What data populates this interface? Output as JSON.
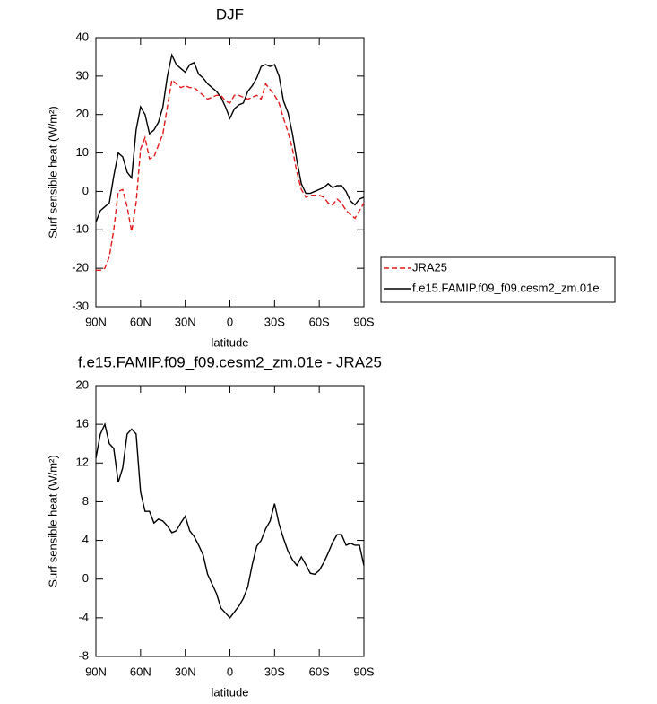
{
  "chart_data": [
    {
      "type": "line",
      "title": "DJF",
      "xlabel": "latitude",
      "ylabel": "Surf sensible heat (W/m²)",
      "x": [
        90,
        87,
        84,
        81,
        78,
        75,
        72,
        69,
        66,
        63,
        60,
        57,
        54,
        51,
        48,
        45,
        42,
        39,
        36,
        33,
        30,
        27,
        24,
        21,
        18,
        15,
        12,
        9,
        6,
        3,
        0,
        -3,
        -6,
        -9,
        -12,
        -15,
        -18,
        -21,
        -24,
        -27,
        -30,
        -33,
        -36,
        -39,
        -42,
        -45,
        -48,
        -51,
        -54,
        -57,
        -60,
        -63,
        -66,
        -69,
        -72,
        -75,
        -78,
        -81,
        -84,
        -87,
        -90
      ],
      "series": [
        {
          "name": "JRA25",
          "color": "#e41a1c",
          "style": "dashed",
          "values": [
            -20.5,
            -20.5,
            -20,
            -17,
            -10,
            0,
            0.5,
            -4,
            -10.5,
            -3,
            11,
            14,
            8.5,
            9,
            12,
            15,
            22,
            29,
            28,
            27,
            27.5,
            27,
            27,
            26,
            25,
            24,
            24.5,
            25,
            25,
            23.5,
            23,
            25,
            25,
            24.5,
            24,
            24.5,
            25,
            24,
            28,
            26.5,
            25,
            23,
            19,
            15.5,
            11,
            5,
            0.5,
            -1.5,
            -1,
            -1,
            -1,
            -1.5,
            -3,
            -3.5,
            -2,
            -3,
            -5,
            -6,
            -7,
            -5,
            -3
          ]
        },
        {
          "name": "f.e15.FAMIP.f09_f09.cesm2_zm.01e",
          "color": "#000000",
          "style": "solid",
          "values": [
            -8,
            -5,
            -4,
            -3,
            4,
            10,
            9,
            5,
            3.5,
            16,
            22,
            20,
            15,
            16,
            18,
            22,
            30,
            35.5,
            33,
            32,
            31,
            33,
            33.5,
            30.5,
            29.5,
            28,
            27,
            26,
            24.5,
            22,
            19,
            21.5,
            22.5,
            23,
            26,
            27.5,
            29.5,
            32.5,
            33,
            32.5,
            33,
            30,
            23.5,
            20.5,
            15,
            8,
            2,
            -0.5,
            -0.5,
            0,
            0.5,
            1,
            2,
            1,
            1.5,
            1.5,
            0,
            -2.5,
            -3.5,
            -2,
            -1.5
          ]
        }
      ],
      "xlim": [
        90,
        -90
      ],
      "xticks": [
        {
          "value": 90,
          "label": "90N"
        },
        {
          "value": 60,
          "label": "60N"
        },
        {
          "value": 30,
          "label": "30N"
        },
        0,
        {
          "value": -30,
          "label": "30S"
        },
        {
          "value": -60,
          "label": "60S"
        },
        {
          "value": -90,
          "label": "90S"
        }
      ],
      "ylim": [
        -30,
        40
      ],
      "yticks": [
        40,
        30,
        20,
        10,
        0,
        -10,
        -20,
        -30
      ],
      "legend": "right"
    },
    {
      "type": "line",
      "title": "f.e15.FAMIP.f09_f09.cesm2_zm.01e - JRA25",
      "xlabel": "latitude",
      "ylabel": "Surf sensible heat (W/m²)",
      "x": [
        90,
        87,
        84,
        81,
        78,
        75,
        72,
        69,
        66,
        63,
        60,
        57,
        54,
        51,
        48,
        45,
        42,
        39,
        36,
        33,
        30,
        27,
        24,
        21,
        18,
        15,
        12,
        9,
        6,
        3,
        0,
        -3,
        -6,
        -9,
        -12,
        -15,
        -18,
        -21,
        -24,
        -27,
        -30,
        -33,
        -36,
        -39,
        -42,
        -45,
        -48,
        -51,
        -54,
        -57,
        -60,
        -63,
        -66,
        -69,
        -72,
        -75,
        -78,
        -81,
        -84,
        -87,
        -90
      ],
      "series": [
        {
          "color": "#000000",
          "style": "solid",
          "values": [
            12.5,
            15,
            16,
            14,
            13.5,
            10,
            11.5,
            15,
            15.5,
            15,
            9,
            7,
            7,
            5.8,
            6.2,
            6,
            5.5,
            4.8,
            5,
            5.8,
            6.5,
            5,
            4.4,
            3.5,
            2.5,
            0.5,
            -0.5,
            -1.5,
            -3,
            -3.5,
            -4,
            -3.4,
            -2.8,
            -2,
            -0.8,
            1.5,
            3.4,
            4,
            5.2,
            6,
            7.8,
            5.7,
            4.2,
            2.9,
            2,
            1.4,
            2.3,
            1.5,
            0.6,
            0.5,
            0.9,
            1.7,
            2.7,
            3.8,
            4.6,
            4.6,
            3.5,
            3.7,
            3.5,
            3.5,
            1.4
          ]
        }
      ],
      "xlim": [
        90,
        -90
      ],
      "xticks": [
        {
          "value": 90,
          "label": "90N"
        },
        {
          "value": 60,
          "label": "60N"
        },
        {
          "value": 30,
          "label": "30N"
        },
        0,
        {
          "value": -30,
          "label": "30S"
        },
        {
          "value": -60,
          "label": "60S"
        },
        {
          "value": -90,
          "label": "90S"
        }
      ],
      "ylim": [
        -8,
        20
      ],
      "yticks": [
        20,
        16,
        12,
        8,
        4,
        0,
        -4,
        -8
      ]
    }
  ]
}
